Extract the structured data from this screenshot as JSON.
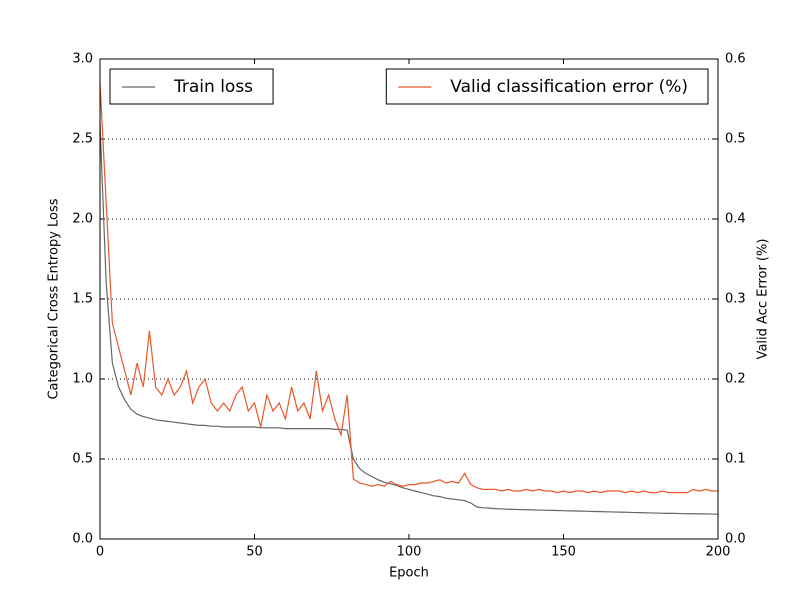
{
  "chart_data": {
    "type": "line",
    "xlabel": "Epoch",
    "ylabel": "Categorical Cross Entropy Loss",
    "y2label": "Valid Acc Error (%)",
    "x": [
      0,
      2,
      4,
      6,
      8,
      10,
      12,
      14,
      16,
      18,
      20,
      22,
      24,
      26,
      28,
      30,
      32,
      34,
      36,
      38,
      40,
      42,
      44,
      46,
      48,
      50,
      52,
      54,
      56,
      58,
      60,
      62,
      64,
      66,
      68,
      70,
      72,
      74,
      76,
      78,
      80,
      82,
      84,
      86,
      88,
      90,
      92,
      94,
      96,
      98,
      100,
      102,
      104,
      106,
      108,
      110,
      112,
      114,
      116,
      118,
      120,
      122,
      124,
      126,
      128,
      130,
      132,
      134,
      136,
      138,
      140,
      142,
      144,
      146,
      148,
      150,
      152,
      154,
      156,
      158,
      160,
      162,
      164,
      166,
      168,
      170,
      172,
      174,
      176,
      178,
      180,
      182,
      184,
      186,
      188,
      190,
      192,
      194,
      196,
      198,
      200
    ],
    "series": [
      {
        "name": "Train loss",
        "color": "#666666",
        "axis": "y",
        "legend": "upper left",
        "values": [
          2.6,
          1.6,
          1.1,
          0.95,
          0.87,
          0.81,
          0.78,
          0.765,
          0.755,
          0.745,
          0.74,
          0.735,
          0.73,
          0.725,
          0.72,
          0.715,
          0.71,
          0.71,
          0.705,
          0.705,
          0.7,
          0.7,
          0.7,
          0.7,
          0.7,
          0.7,
          0.695,
          0.695,
          0.695,
          0.695,
          0.69,
          0.69,
          0.69,
          0.69,
          0.69,
          0.69,
          0.69,
          0.69,
          0.685,
          0.685,
          0.68,
          0.5,
          0.44,
          0.41,
          0.39,
          0.37,
          0.355,
          0.345,
          0.335,
          0.32,
          0.31,
          0.3,
          0.29,
          0.28,
          0.27,
          0.265,
          0.255,
          0.25,
          0.245,
          0.24,
          0.225,
          0.2,
          0.195,
          0.193,
          0.19,
          0.188,
          0.186,
          0.185,
          0.184,
          0.183,
          0.182,
          0.181,
          0.18,
          0.179,
          0.178,
          0.177,
          0.176,
          0.175,
          0.174,
          0.173,
          0.172,
          0.171,
          0.17,
          0.169,
          0.168,
          0.167,
          0.166,
          0.165,
          0.164,
          0.163,
          0.162,
          0.161,
          0.16,
          0.16,
          0.159,
          0.158,
          0.158,
          0.157,
          0.157,
          0.156,
          0.155
        ]
      },
      {
        "name": "Valid classification error (%)",
        "color": "#e8572a",
        "axis": "y2",
        "legend": "upper right",
        "values": [
          0.57,
          0.42,
          0.27,
          0.24,
          0.21,
          0.18,
          0.22,
          0.19,
          0.26,
          0.19,
          0.18,
          0.2,
          0.18,
          0.19,
          0.21,
          0.17,
          0.19,
          0.2,
          0.17,
          0.16,
          0.17,
          0.16,
          0.18,
          0.19,
          0.16,
          0.17,
          0.14,
          0.18,
          0.16,
          0.17,
          0.15,
          0.19,
          0.16,
          0.17,
          0.15,
          0.21,
          0.16,
          0.18,
          0.15,
          0.13,
          0.18,
          0.075,
          0.07,
          0.068,
          0.066,
          0.068,
          0.066,
          0.072,
          0.068,
          0.066,
          0.068,
          0.068,
          0.07,
          0.07,
          0.072,
          0.074,
          0.07,
          0.072,
          0.07,
          0.082,
          0.068,
          0.064,
          0.062,
          0.062,
          0.062,
          0.06,
          0.062,
          0.06,
          0.06,
          0.062,
          0.06,
          0.062,
          0.06,
          0.06,
          0.058,
          0.06,
          0.058,
          0.06,
          0.06,
          0.058,
          0.06,
          0.058,
          0.06,
          0.06,
          0.06,
          0.058,
          0.06,
          0.058,
          0.06,
          0.058,
          0.058,
          0.06,
          0.058,
          0.058,
          0.058,
          0.058,
          0.062,
          0.06,
          0.062,
          0.06,
          0.06
        ]
      }
    ],
    "xlim": [
      0,
      200
    ],
    "xticks": [
      0,
      50,
      100,
      150,
      200
    ],
    "ylim": [
      0,
      3
    ],
    "yticks": [
      {
        "value": 0,
        "label": "0.0"
      },
      {
        "value": 0.5,
        "label": "0.5"
      },
      {
        "value": 1,
        "label": "1.0"
      },
      {
        "value": 1.5,
        "label": "1.5"
      },
      {
        "value": 2,
        "label": "2.0"
      },
      {
        "value": 2.5,
        "label": "2.5"
      },
      {
        "value": 3,
        "label": "3.0"
      }
    ],
    "y2lim": [
      0,
      0.6
    ],
    "y2ticks": [
      {
        "value": 0,
        "label": "0.0"
      },
      {
        "value": 0.1,
        "label": "0.1"
      },
      {
        "value": 0.2,
        "label": "0.2"
      },
      {
        "value": 0.3,
        "label": "0.3"
      },
      {
        "value": 0.4,
        "label": "0.4"
      },
      {
        "value": 0.5,
        "label": "0.5"
      },
      {
        "value": 0.6,
        "label": "0.6"
      }
    ],
    "grid": "y"
  }
}
